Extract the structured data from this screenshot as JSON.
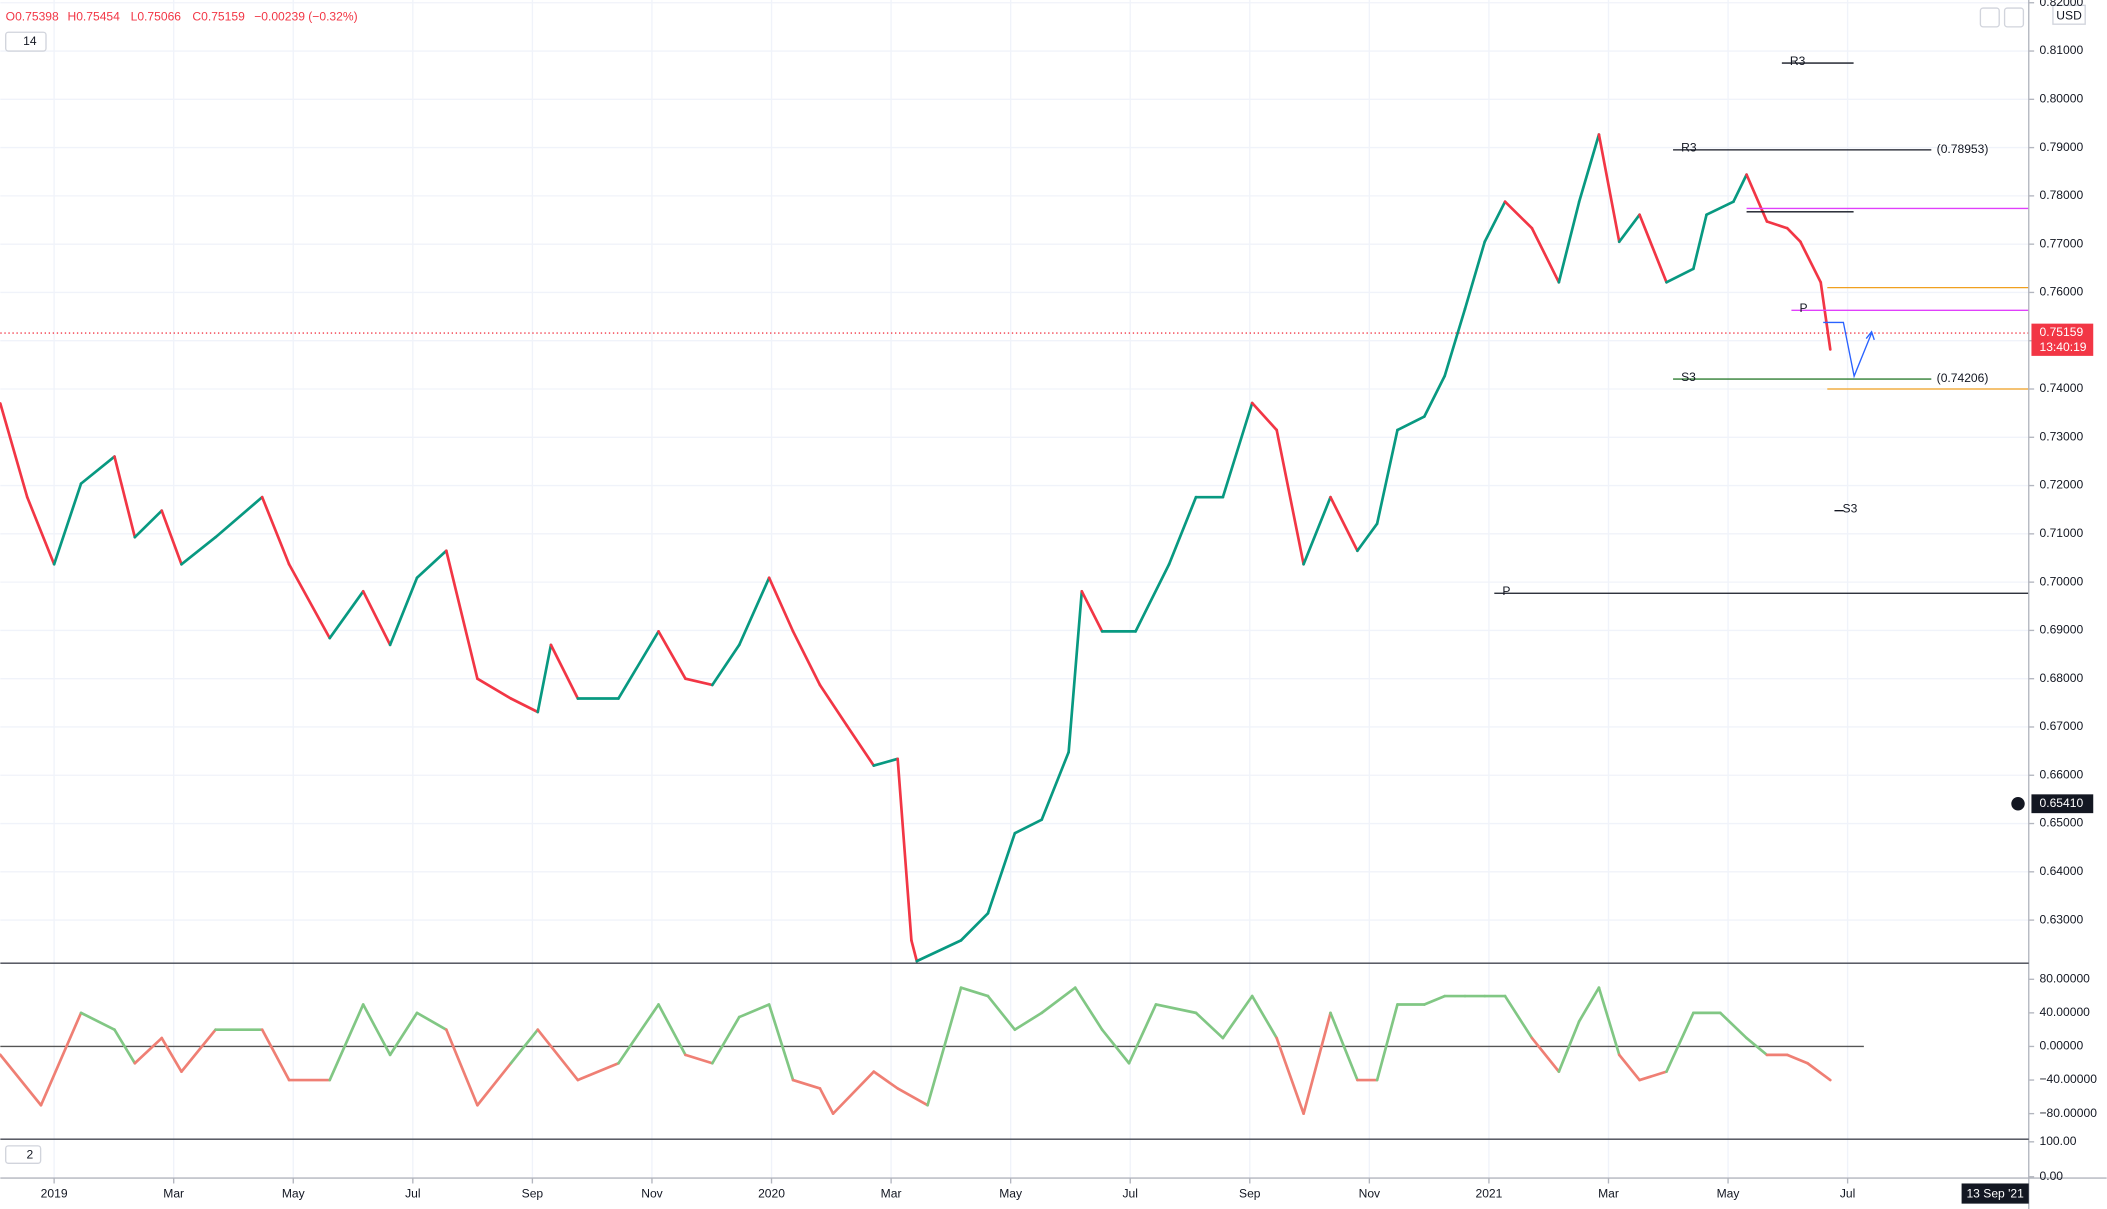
{
  "header": {
    "open": "O0.75398",
    "high": "H0.75454",
    "low": "L0.75066",
    "close": "C0.75159",
    "change": "−0.00239 (−0.32%)",
    "indicator": "14",
    "currency": "USD",
    "pane3_badge": "2",
    "date_tag": "13 Sep '21"
  },
  "chart_data": [
    {
      "type": "line",
      "name": "price",
      "ylim": [
        0.62108,
        0.82057
      ],
      "xlim": [
        -0.9,
        33.03
      ],
      "yticks": [
        {
          "value": 0.63,
          "label": "0.63000"
        },
        {
          "value": 0.64,
          "label": "0.64000"
        },
        {
          "value": 0.65,
          "label": "0.65000"
        },
        {
          "value": 0.66,
          "label": "0.66000"
        },
        {
          "value": 0.67,
          "label": "0.67000"
        },
        {
          "value": 0.68,
          "label": "0.68000"
        },
        {
          "value": 0.69,
          "label": "0.69000"
        },
        {
          "value": 0.7,
          "label": "0.70000"
        },
        {
          "value": 0.71,
          "label": "0.71000"
        },
        {
          "value": 0.72,
          "label": "0.72000"
        },
        {
          "value": 0.73,
          "label": "0.73000"
        },
        {
          "value": 0.74,
          "label": "0.74000"
        },
        {
          "value": 0.75,
          "label": "0.75000"
        },
        {
          "value": 0.76,
          "label": "0.76000"
        },
        {
          "value": 0.77,
          "label": "0.77000"
        },
        {
          "value": 0.78,
          "label": "0.78000"
        },
        {
          "value": 0.79,
          "label": "0.79000"
        },
        {
          "value": 0.8,
          "label": "0.80000"
        },
        {
          "value": 0.81,
          "label": "0.81000"
        },
        {
          "value": 0.82,
          "label": "0.82000"
        }
      ],
      "xticks": [
        {
          "value": 0,
          "label": "2019"
        },
        {
          "value": 2,
          "label": "Mar"
        },
        {
          "value": 4,
          "label": "May"
        },
        {
          "value": 6,
          "label": "Jul"
        },
        {
          "value": 8,
          "label": "Sep"
        },
        {
          "value": 10,
          "label": "Nov"
        },
        {
          "value": 12,
          "label": "2020"
        },
        {
          "value": 14,
          "label": "Mar"
        },
        {
          "value": 16,
          "label": "May"
        },
        {
          "value": 18,
          "label": "Jul"
        },
        {
          "value": 20,
          "label": "Sep"
        },
        {
          "value": 22,
          "label": "Nov"
        },
        {
          "value": 24,
          "label": "2021"
        },
        {
          "value": 26,
          "label": "Mar"
        },
        {
          "value": 28,
          "label": "May"
        },
        {
          "value": 30,
          "label": "Jul"
        }
      ],
      "grid": true,
      "up_color": "#089981",
      "down_color": "#f23645",
      "x": [
        -0.9,
        -0.45,
        0,
        0.45,
        1.01,
        1.35,
        1.8,
        2.13,
        2.7,
        3.48,
        3.93,
        4.61,
        5.17,
        5.62,
        6.07,
        6.56,
        7.08,
        7.64,
        8.09,
        8.31,
        8.76,
        9.44,
        10.11,
        10.56,
        11.01,
        11.46,
        11.96,
        12.36,
        12.81,
        13.26,
        13.71,
        14.11,
        14.34,
        14.43,
        15.17,
        15.62,
        16.07,
        16.52,
        16.97,
        17.19,
        17.53,
        18.09,
        18.65,
        19.1,
        19.55,
        20.04,
        20.45,
        20.9,
        21.35,
        21.8,
        22.13,
        22.47,
        22.92,
        23.26,
        23.6,
        23.93,
        24.27,
        24.72,
        25.17,
        25.51,
        25.84,
        26.18,
        26.52,
        26.97,
        27.42,
        27.64,
        28.09,
        28.31,
        28.65,
        28.99,
        29.21,
        29.55,
        29.71
      ],
      "values": [
        0.737,
        0.7176,
        0.7037,
        0.7204,
        0.726,
        0.7093,
        0.7148,
        0.7037,
        0.7093,
        0.7176,
        0.7037,
        0.6884,
        0.6981,
        0.687,
        0.7009,
        0.7065,
        0.68,
        0.6759,
        0.6731,
        0.687,
        0.6759,
        0.6759,
        0.6898,
        0.68,
        0.6787,
        0.687,
        0.7009,
        0.6898,
        0.6787,
        0.6703,
        0.662,
        0.6634,
        0.6258,
        0.6215,
        0.6258,
        0.6314,
        0.648,
        0.6508,
        0.6648,
        0.6981,
        0.6898,
        0.6898,
        0.7037,
        0.7176,
        0.7176,
        0.7371,
        0.7315,
        0.7037,
        0.7176,
        0.7065,
        0.7121,
        0.7315,
        0.7343,
        0.7427,
        0.7566,
        0.7705,
        0.7788,
        0.7733,
        0.7621,
        0.7788,
        0.7927,
        0.7705,
        0.7761,
        0.7621,
        0.7649,
        0.7761,
        0.7788,
        0.7844,
        0.7747,
        0.7733,
        0.7705,
        0.7621,
        0.7482
      ],
      "current_price": 0.75159,
      "current_price_color": "#f23645",
      "countdown": "13:40:19",
      "crosshair": {
        "value": 0.6541,
        "label": "0.65410"
      },
      "levels": [
        {
          "label": "R3",
          "value": 0.8075,
          "from": 28.9,
          "to": 30.1,
          "color": "#131722"
        },
        {
          "label": "R3",
          "value": 0.78953,
          "value_label": "(0.78953)",
          "from": 27.08,
          "to": 31.4,
          "color": "#131722"
        },
        {
          "value": 0.7774,
          "from": 28.31,
          "to": 33.03,
          "color": "#e040fb"
        },
        {
          "value": 0.7767,
          "from": 28.31,
          "to": 30.1,
          "color": "#131722"
        },
        {
          "value": 0.761,
          "from": 29.66,
          "to": 33.03,
          "color": "#f0a020"
        },
        {
          "label": "P",
          "value": 0.7563,
          "from": 29.06,
          "to": 33.03,
          "color": "#e040fb"
        },
        {
          "label": "S3",
          "value": 0.74206,
          "value_label": "(0.74206)",
          "from": 27.08,
          "to": 31.4,
          "color": "#2e7d32"
        },
        {
          "value": 0.74,
          "from": 29.66,
          "to": 33.03,
          "color": "#f0a020"
        },
        {
          "label": "S3",
          "value": 0.7148,
          "from": 29.78,
          "to": 29.93,
          "color": "#131722"
        },
        {
          "label": "P",
          "value": 0.6977,
          "from": 24.09,
          "to": 33.03,
          "color": "#131722"
        }
      ]
    },
    {
      "type": "line",
      "name": "oscillator",
      "ylim": [
        -110.4,
        99.2
      ],
      "xlim": [
        -0.9,
        33.03
      ],
      "yticks": [
        {
          "value": 80,
          "label": "80.00000"
        },
        {
          "value": 40,
          "label": "40.00000"
        },
        {
          "value": 0,
          "label": "0.00000"
        },
        {
          "value": -40,
          "label": "−40.00000"
        },
        {
          "value": -80,
          "label": "−80.00000"
        }
      ],
      "zero_line": 0,
      "up_color": "#81c784",
      "down_color": "#ef7f74",
      "x": [
        -0.9,
        -0.22,
        0.45,
        1.01,
        1.35,
        1.8,
        2.13,
        2.7,
        3.48,
        3.93,
        4.61,
        5.17,
        5.62,
        6.07,
        6.56,
        7.08,
        7.64,
        8.09,
        8.76,
        9.44,
        10.11,
        10.56,
        11.01,
        11.46,
        11.96,
        12.36,
        12.81,
        13.03,
        13.71,
        14.11,
        14.61,
        15.17,
        15.62,
        16.07,
        16.52,
        17.08,
        17.53,
        17.98,
        18.43,
        19.1,
        19.55,
        20.04,
        20.45,
        20.9,
        21.35,
        21.8,
        22.13,
        22.47,
        22.92,
        23.26,
        23.6,
        23.93,
        24.27,
        24.72,
        25.17,
        25.51,
        25.84,
        26.18,
        26.52,
        26.97,
        27.42,
        27.87,
        28.31,
        28.65,
        28.99,
        29.33,
        29.71
      ],
      "values": [
        -10,
        -70,
        40,
        20,
        -20,
        10,
        -30,
        20,
        20,
        -40,
        -40,
        50,
        -10,
        40,
        20,
        -70,
        -20,
        20,
        -40,
        -20,
        50,
        -10,
        -20,
        35,
        50,
        -40,
        -50,
        -80,
        -30,
        -50,
        -70,
        70,
        60,
        20,
        40,
        70,
        20,
        -20,
        50,
        40,
        10,
        60,
        10,
        -80,
        40,
        -40,
        -40,
        50,
        50,
        60,
        60,
        60,
        60,
        10,
        -30,
        30,
        70,
        -10,
        -40,
        -30,
        40,
        40,
        10,
        -10,
        -10,
        -20,
        -40
      ]
    },
    {
      "type": "ticks",
      "name": "pane3",
      "ylim": [
        -3.8,
        107.7
      ],
      "yticks": [
        {
          "value": 100,
          "label": "100.00"
        },
        {
          "value": 0,
          "label": "0.00"
        }
      ]
    }
  ]
}
